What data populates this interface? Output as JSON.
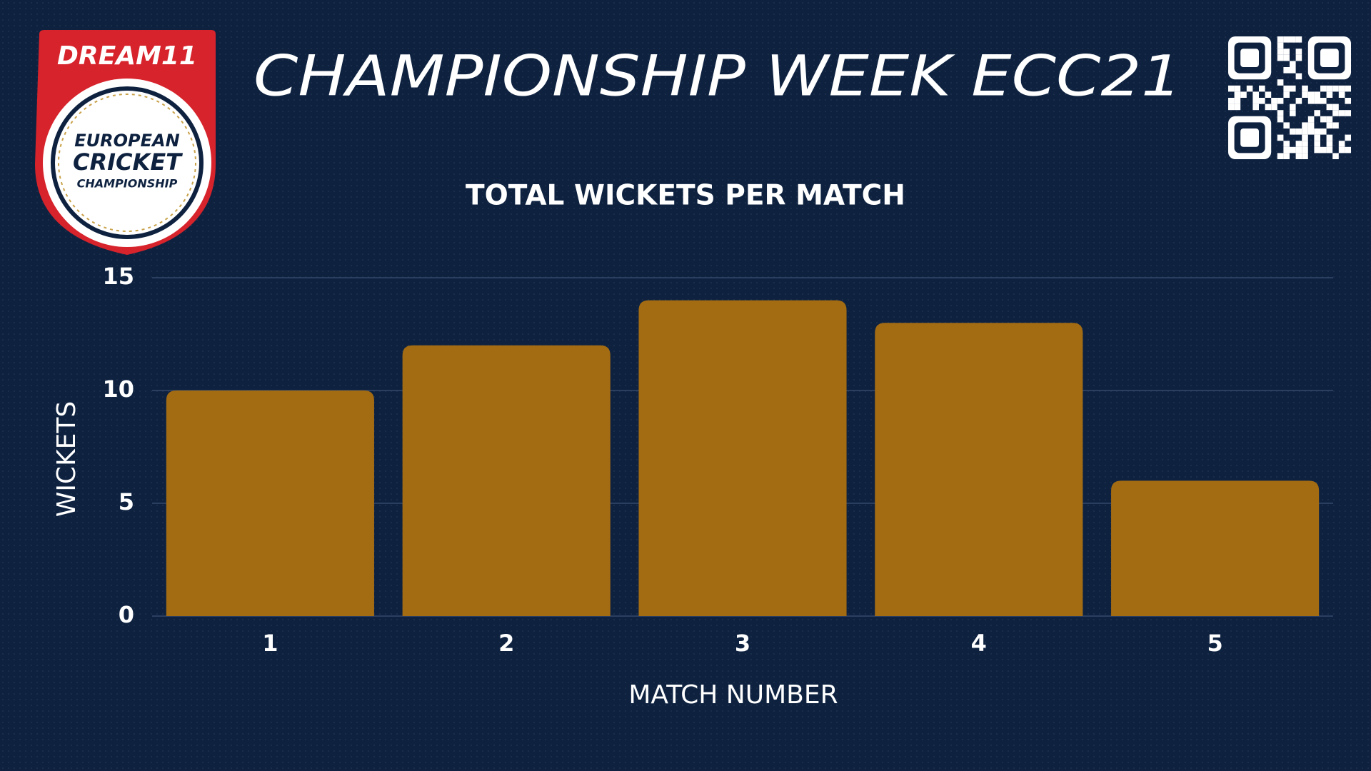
{
  "header": {
    "title": "CHAMPIONSHIP WEEK ECC21",
    "logo": {
      "brand": "DREAM11",
      "line1": "EUROPEAN",
      "line2": "CRICKET",
      "line3": "CHAMPIONSHIP"
    }
  },
  "chart_data": {
    "type": "bar",
    "title": "TOTAL WICKETS PER MATCH",
    "x_label": "MATCH NUMBER",
    "y_label": "WICKETS",
    "categories": [
      "1",
      "2",
      "3",
      "4",
      "5"
    ],
    "values": [
      10,
      12,
      14,
      13,
      6
    ],
    "color": "#a36b12",
    "ylim": [
      0,
      15
    ],
    "yticks": [
      0,
      5,
      10,
      15
    ],
    "grid": true
  }
}
